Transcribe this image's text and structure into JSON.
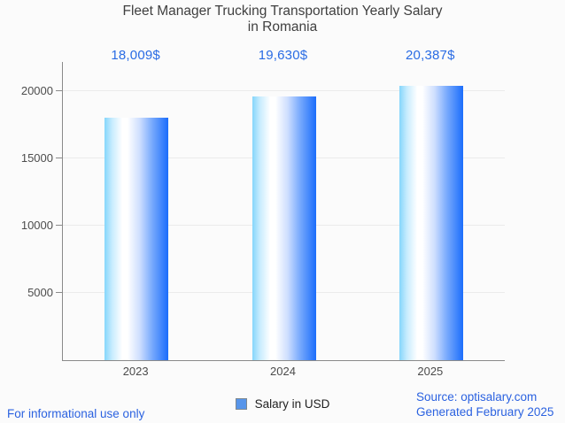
{
  "title": {
    "line1": "Fleet Manager Trucking Transportation Yearly Salary",
    "line2": "in Romania"
  },
  "chart_data": {
    "type": "bar",
    "categories": [
      "2023",
      "2024",
      "2025"
    ],
    "series": [
      {
        "name": "Salary in USD",
        "values": [
          18009,
          19630,
          20387
        ]
      }
    ],
    "value_labels": [
      "18,009$",
      "19,630$",
      "20,387$"
    ],
    "title": "Fleet Manager Trucking Transportation Yearly Salary in Romania",
    "xlabel": "",
    "ylabel": "",
    "ylim": [
      0,
      22000
    ],
    "yticks": [
      5000,
      10000,
      15000,
      20000
    ],
    "ytick_labels": [
      "5000",
      "10000",
      "15000",
      "20000"
    ],
    "grid": true,
    "legend_position": "bottom-center"
  },
  "legend": {
    "label": "Salary in USD",
    "swatch_color": "#5795ea"
  },
  "footer": {
    "left": "For informational use only",
    "source": "Source: optisalary.com",
    "generated": "Generated February 2025"
  },
  "colors": {
    "value_label_blue": "#2a6ce4",
    "footer_blue": "#2b62e0",
    "bar_gradient_left": "#85d6fb",
    "bar_gradient_mid": "#ffffff",
    "bar_gradient_right": "#1b6dfb",
    "axis_gray": "#8a8a8a",
    "grid_gray": "#ebebeb",
    "title_gray": "#3f3f3f",
    "tick_gray": "#4d4d4d"
  }
}
